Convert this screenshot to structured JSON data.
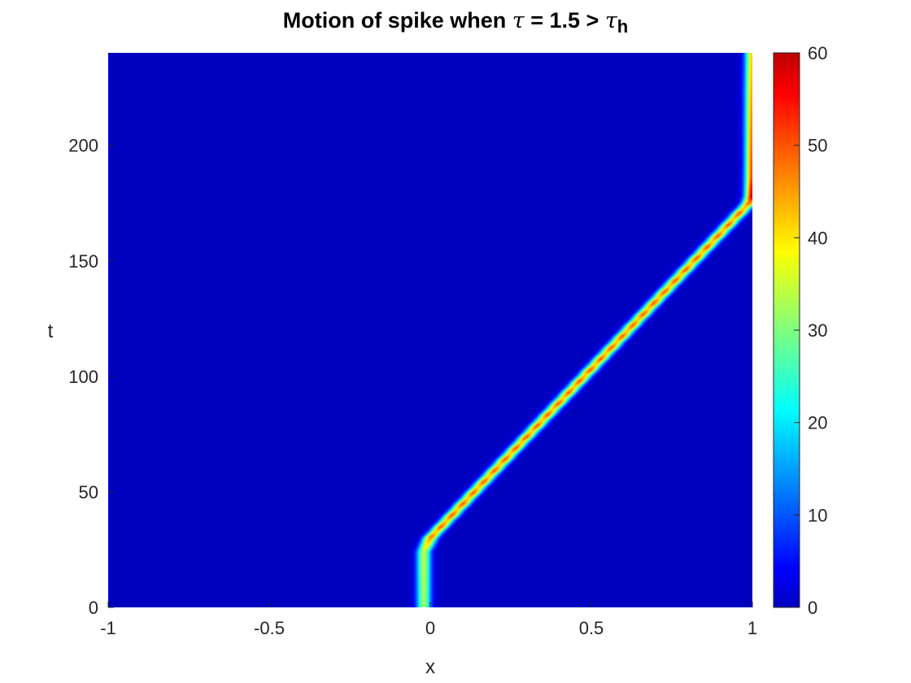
{
  "chart_data": {
    "type": "heatmap",
    "title": {
      "prefix": "Motion of spike when ",
      "symbol": "τ",
      "middle": " = 1.5 > ",
      "symbol2": "τ",
      "subscript": "h"
    },
    "xlabel": "x",
    "ylabel": "t",
    "xlim": [
      -1,
      1
    ],
    "ylim": [
      0,
      240
    ],
    "xticks": [
      "-1",
      "-0.5",
      "0",
      "0.5",
      "1"
    ],
    "xtick_values": [
      -1,
      -0.5,
      0,
      0.5,
      1
    ],
    "yticks": [
      "0",
      "50",
      "100",
      "150",
      "200"
    ],
    "ytick_values": [
      0,
      50,
      100,
      150,
      200
    ],
    "colorbar": {
      "clim": [
        0,
        60
      ],
      "ticks": [
        "0",
        "10",
        "20",
        "30",
        "40",
        "50",
        "60"
      ],
      "tick_values": [
        0,
        10,
        20,
        30,
        40,
        50,
        60
      ],
      "colormap": "jet"
    },
    "spike_path": [
      {
        "t": 0,
        "x": -0.02,
        "amplitude": 32
      },
      {
        "t": 24,
        "x": -0.02,
        "amplitude": 34
      },
      {
        "t": 30,
        "x": 0.0,
        "amplitude": 46
      },
      {
        "t": 175,
        "x": 0.99,
        "amplitude": 46
      },
      {
        "t": 178,
        "x": 1.0,
        "amplitude": 60
      },
      {
        "t": 186,
        "x": 1.0,
        "amplitude": 52
      },
      {
        "t": 240,
        "x": 1.0,
        "amplitude": 42
      }
    ],
    "spike_width": 0.022,
    "background_value": 0
  }
}
